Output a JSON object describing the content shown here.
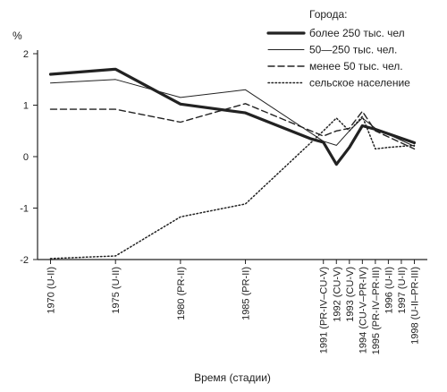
{
  "chart_data": {
    "type": "line",
    "ylabel": "%",
    "xlabel": "Время (стадии)",
    "ylim": [
      -2,
      2
    ],
    "yticks": [
      2,
      1,
      0,
      -1,
      -2
    ],
    "legend_title": "Города:",
    "legend_position": "top-right",
    "grid": false,
    "categories": [
      "1970 (U-II)",
      "1975 (U-II)",
      "1980 (PR-II)",
      "1985 (PR-II)",
      "1991 (PR-IV–CU-V)",
      "1992 (CU-V)",
      "1993 (CU-V)",
      "1994 (CU-V–PR-IV)",
      "1995 (PR-IV–PR-III)",
      "1996 (U-II)",
      "1997 (U-II)",
      "1998 (U-II–PR-III)"
    ],
    "x": [
      1970,
      1975,
      1980,
      1985,
      1991,
      1992,
      1993,
      1994,
      1995,
      1996,
      1997,
      1998
    ],
    "series": [
      {
        "name": "более 250 тыс. чел",
        "style": "thick",
        "points": [
          [
            1970,
            1.6
          ],
          [
            1975,
            1.7
          ],
          [
            1980,
            1.02
          ],
          [
            1985,
            0.85
          ],
          [
            1990,
            0.35
          ],
          [
            1991,
            0.28
          ],
          [
            1992,
            -0.15
          ],
          [
            1993,
            0.18
          ],
          [
            1994,
            0.6
          ],
          [
            1995,
            0.53
          ],
          [
            1998,
            0.27
          ]
        ]
      },
      {
        "name": "50—250 тыс. чел.",
        "style": "thin",
        "points": [
          [
            1970,
            1.43
          ],
          [
            1975,
            1.5
          ],
          [
            1980,
            1.15
          ],
          [
            1985,
            1.3
          ],
          [
            1991,
            0.3
          ],
          [
            1992,
            0.22
          ],
          [
            1993,
            0.5
          ],
          [
            1994,
            0.75
          ],
          [
            1995,
            0.55
          ],
          [
            1998,
            0.2
          ]
        ]
      },
      {
        "name": "менее 50 тыс. чел.",
        "style": "dashed",
        "points": [
          [
            1970,
            0.92
          ],
          [
            1975,
            0.92
          ],
          [
            1980,
            0.67
          ],
          [
            1985,
            1.03
          ],
          [
            1991,
            0.4
          ],
          [
            1992,
            0.5
          ],
          [
            1993,
            0.55
          ],
          [
            1994,
            0.88
          ],
          [
            1995,
            0.5
          ],
          [
            1998,
            0.15
          ]
        ]
      },
      {
        "name": "сельское население",
        "style": "dotted",
        "points": [
          [
            1970,
            -1.98
          ],
          [
            1975,
            -1.93
          ],
          [
            1980,
            -1.17
          ],
          [
            1985,
            -0.92
          ],
          [
            1991,
            0.5
          ],
          [
            1992,
            0.75
          ],
          [
            1993,
            0.5
          ],
          [
            1994,
            0.78
          ],
          [
            1995,
            0.15
          ],
          [
            1996,
            0.18
          ],
          [
            1998,
            0.22
          ]
        ]
      }
    ]
  }
}
